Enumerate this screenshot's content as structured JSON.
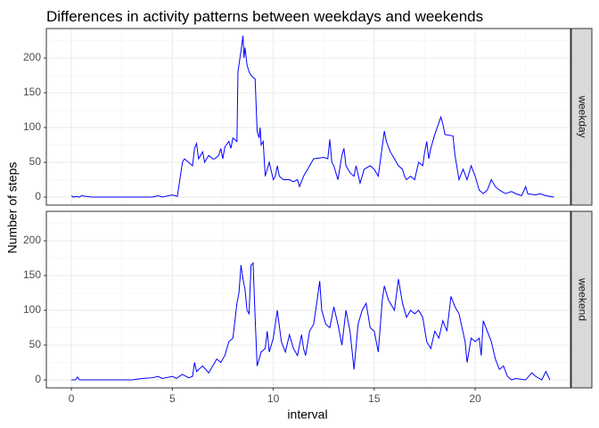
{
  "chart_data": {
    "type": "line",
    "title": "Differences in activity patterns between weekdays and weekends",
    "xlabel": "interval",
    "ylabel": "Number of steps",
    "xlim": [
      -1.24,
      24.72
    ],
    "ylim": [
      -11.5,
      242.3
    ],
    "xticks": [
      0,
      5,
      10,
      15,
      20
    ],
    "yticks": [
      0,
      50,
      100,
      150,
      200
    ],
    "x_minor_ticks": [
      2.5,
      7.5,
      12.5,
      17.5,
      22.5
    ],
    "y_minor_ticks": [
      25,
      75,
      125,
      175,
      225
    ],
    "grid": true,
    "series": [
      {
        "name": "weekday",
        "color": "#0000ff",
        "x": [
          0,
          0.1,
          0.25,
          0.4,
          0.5,
          1,
          2,
          3,
          4,
          4.3,
          4.5,
          5,
          5.25,
          5.5,
          5.6,
          5.8,
          6,
          6.1,
          6.2,
          6.3,
          6.5,
          6.6,
          6.8,
          7,
          7.1,
          7.3,
          7.4,
          7.5,
          7.6,
          7.8,
          7.9,
          8,
          8.2,
          8.25,
          8.4,
          8.5,
          8.55,
          8.6,
          8.7,
          8.8,
          8.9,
          9,
          9.1,
          9.2,
          9.3,
          9.35,
          9.4,
          9.5,
          9.6,
          9.8,
          10,
          10.1,
          10.2,
          10.3,
          10.5,
          10.8,
          11,
          11.2,
          11.3,
          11.5,
          11.8,
          12,
          12.5,
          12.7,
          12.8,
          12.9,
          13,
          13.2,
          13.4,
          13.5,
          13.6,
          13.8,
          14,
          14.1,
          14.3,
          14.5,
          14.8,
          15,
          15.2,
          15.5,
          15.6,
          15.8,
          16,
          16.2,
          16.4,
          16.5,
          16.6,
          16.8,
          17,
          17.2,
          17.4,
          17.5,
          17.6,
          17.7,
          17.8,
          18,
          18.3,
          18.4,
          18.5,
          18.9,
          19,
          19.2,
          19.4,
          19.6,
          19.8,
          20,
          20.2,
          20.4,
          20.6,
          20.8,
          21,
          21.2,
          21.5,
          21.8,
          22,
          22.3,
          22.5,
          22.6,
          23,
          23.2,
          23.5,
          23.9
        ],
        "values": [
          2,
          0,
          1,
          0,
          2,
          0,
          0,
          0,
          0,
          2,
          0,
          3,
          1,
          50,
          55,
          50,
          45,
          70,
          77,
          55,
          65,
          50,
          60,
          55,
          55,
          60,
          70,
          55,
          72,
          80,
          70,
          85,
          80,
          180,
          210,
          232,
          200,
          215,
          190,
          180,
          175,
          172,
          170,
          95,
          85,
          100,
          75,
          80,
          30,
          50,
          25,
          30,
          45,
          30,
          25,
          25,
          22,
          25,
          15,
          30,
          45,
          55,
          57,
          55,
          83,
          50,
          45,
          25,
          60,
          70,
          45,
          35,
          30,
          45,
          20,
          40,
          45,
          40,
          30,
          95,
          80,
          65,
          55,
          45,
          40,
          30,
          25,
          30,
          25,
          50,
          45,
          65,
          80,
          55,
          70,
          90,
          115,
          105,
          90,
          88,
          60,
          25,
          40,
          25,
          45,
          30,
          10,
          5,
          10,
          25,
          15,
          10,
          5,
          8,
          5,
          2,
          15,
          5,
          3,
          5,
          2,
          0
        ]
      },
      {
        "name": "weekend",
        "color": "#0000ff",
        "x": [
          0,
          0.2,
          0.3,
          0.4,
          1,
          2,
          3,
          3.5,
          4,
          4.3,
          4.5,
          5,
          5.2,
          5.5,
          5.8,
          6,
          6.1,
          6.2,
          6.5,
          6.8,
          7,
          7.2,
          7.4,
          7.6,
          7.8,
          8,
          8.2,
          8.3,
          8.4,
          8.5,
          8.6,
          8.7,
          8.8,
          8.9,
          9,
          9.1,
          9.2,
          9.4,
          9.6,
          9.7,
          9.8,
          10,
          10.2,
          10.4,
          10.6,
          10.8,
          11,
          11.2,
          11.4,
          11.5,
          11.6,
          11.8,
          12,
          12.2,
          12.3,
          12.4,
          12.6,
          12.8,
          13,
          13.2,
          13.4,
          13.6,
          13.8,
          14,
          14.2,
          14.4,
          14.6,
          14.8,
          15,
          15.2,
          15.4,
          15.5,
          15.7,
          16,
          16.2,
          16.4,
          16.6,
          16.8,
          17,
          17.2,
          17.4,
          17.6,
          17.8,
          18,
          18.2,
          18.4,
          18.6,
          18.8,
          19,
          19.2,
          19.5,
          19.6,
          19.8,
          20,
          20.2,
          20.3,
          20.4,
          20.6,
          20.8,
          21,
          21.2,
          21.4,
          21.6,
          21.8,
          22,
          22.5,
          22.8,
          23,
          23.3,
          23.5,
          23.7
        ],
        "values": [
          0,
          0,
          4,
          0,
          0,
          0,
          0,
          2,
          3,
          5,
          2,
          5,
          2,
          8,
          3,
          5,
          25,
          12,
          20,
          10,
          20,
          30,
          25,
          35,
          55,
          60,
          110,
          125,
          165,
          145,
          130,
          100,
          95,
          165,
          168,
          90,
          20,
          40,
          45,
          70,
          40,
          60,
          100,
          55,
          40,
          65,
          45,
          35,
          65,
          45,
          35,
          70,
          80,
          120,
          142,
          100,
          80,
          75,
          105,
          80,
          50,
          100,
          70,
          15,
          80,
          100,
          110,
          75,
          70,
          40,
          115,
          135,
          115,
          100,
          145,
          110,
          90,
          100,
          95,
          100,
          90,
          55,
          45,
          70,
          60,
          85,
          70,
          120,
          105,
          95,
          55,
          25,
          60,
          55,
          60,
          35,
          85,
          70,
          55,
          30,
          15,
          20,
          5,
          0,
          2,
          0,
          10,
          5,
          0,
          12,
          0
        ]
      }
    ]
  }
}
